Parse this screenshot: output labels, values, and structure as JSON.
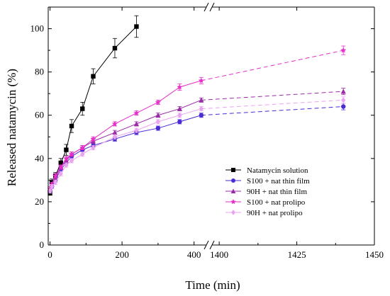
{
  "chart_data": {
    "type": "line",
    "xlabel": "Time (min)",
    "ylabel": "Released natamycin (%)",
    "ylim": [
      0,
      110
    ],
    "y_ticks": [
      "0",
      "20",
      "40",
      "60",
      "80",
      "100"
    ],
    "x_segments": [
      {
        "range": [
          -5,
          440
        ],
        "ticks": [
          "0",
          "200",
          "400"
        ]
      },
      {
        "range": [
          1397,
          1450
        ],
        "ticks": [
          "1400",
          "1425",
          "1450"
        ]
      }
    ],
    "axis_break": "between 420 and 1400 min",
    "legend_position": "lower-right",
    "series": [
      {
        "name": "Natamycin solution",
        "color": "#000000",
        "marker": "square",
        "x": [
          0,
          5,
          15,
          30,
          45,
          60,
          90,
          120,
          180,
          240
        ],
        "y": [
          24,
          29,
          32,
          38,
          44,
          55,
          63,
          78,
          91,
          101
        ],
        "err": [
          1,
          1.5,
          1.5,
          2,
          2.5,
          3,
          3,
          3.5,
          4.5,
          5
        ]
      },
      {
        "name": "S100 + nat thin film",
        "color": "#4b2bd6",
        "marker": "circle",
        "x": [
          0,
          5,
          15,
          30,
          45,
          60,
          90,
          120,
          180,
          240,
          300,
          360,
          420,
          1440
        ],
        "y": [
          25,
          27,
          30,
          35,
          38,
          41,
          44,
          46,
          49,
          52,
          54,
          57,
          60,
          64
        ],
        "err": [
          1,
          1,
          1,
          1,
          1,
          1,
          1,
          1,
          1,
          1,
          1,
          1,
          1,
          1.5
        ]
      },
      {
        "name": "90H + nat thin film",
        "color": "#9a2ca8",
        "marker": "triangle",
        "x": [
          0,
          5,
          15,
          30,
          45,
          60,
          90,
          120,
          180,
          240,
          300,
          360,
          420,
          1440
        ],
        "y": [
          26,
          28,
          31,
          36,
          39,
          42,
          45,
          48,
          52,
          56,
          60,
          63,
          67,
          71
        ],
        "err": [
          1,
          1,
          1,
          1,
          1,
          1,
          1,
          1,
          1,
          1,
          1,
          1,
          1,
          1.5
        ]
      },
      {
        "name": "S100 + nat prolipo",
        "color": "#e62ec8",
        "marker": "star",
        "x": [
          0,
          5,
          15,
          30,
          45,
          60,
          90,
          120,
          180,
          240,
          300,
          360,
          420,
          1440
        ],
        "y": [
          26,
          28,
          32,
          36,
          40,
          42,
          45,
          49,
          56,
          61,
          66,
          73,
          76,
          90
        ],
        "err": [
          1,
          1,
          1,
          1,
          1,
          1,
          1,
          1,
          1,
          1,
          1,
          1.5,
          1.5,
          2
        ]
      },
      {
        "name": "90H + nat prolipo",
        "color": "#e9a3f1",
        "marker": "diamond",
        "x": [
          0,
          5,
          15,
          30,
          45,
          60,
          90,
          120,
          180,
          240,
          300,
          360,
          420,
          1440
        ],
        "y": [
          25,
          27,
          29,
          33,
          37,
          39,
          42,
          45,
          50,
          53,
          57,
          60,
          63,
          67
        ],
        "err": [
          1,
          1,
          1,
          1,
          1,
          1,
          1,
          1,
          1,
          1,
          1,
          1,
          1,
          1.5
        ]
      }
    ]
  }
}
